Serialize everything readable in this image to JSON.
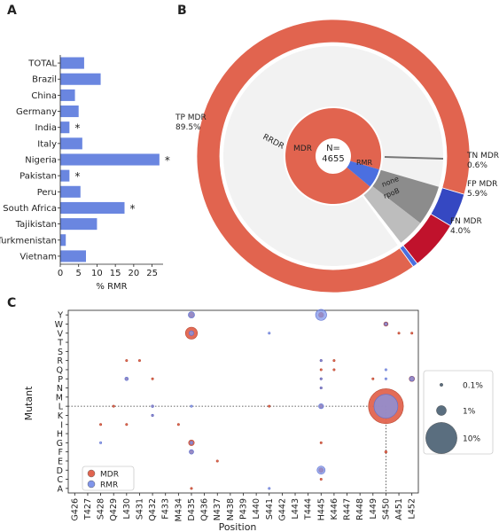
{
  "panel_labels": {
    "a": "A",
    "b": "B",
    "c": "C"
  },
  "chart_data": [
    {
      "panel": "A",
      "type": "bar",
      "orientation": "horizontal",
      "categories": [
        "TOTAL",
        "Brazil",
        "China",
        "Germany",
        "India",
        "Italy",
        "Nigeria",
        "Pakistan",
        "Peru",
        "South Africa",
        "Tajikistan",
        "Turkmenistan",
        "Vietnam"
      ],
      "values": [
        6.5,
        11,
        4,
        5,
        2.5,
        6,
        27,
        2.5,
        5.5,
        17.5,
        10,
        1.5,
        7
      ],
      "markers": [
        "",
        "",
        "",
        "",
        "*",
        "",
        "*",
        "*",
        "",
        "*",
        "",
        "",
        ""
      ],
      "xlabel": "% RMR",
      "xticks": [
        "0",
        "5",
        "10",
        "15",
        "20",
        "25"
      ],
      "xlim": [
        0,
        28
      ],
      "bar_color": "#6a86e0"
    },
    {
      "panel": "B",
      "type": "pie",
      "center_label": "N=\n4655",
      "center_line1": "N=",
      "center_line2": "4655",
      "outer_ring": [
        {
          "label": "TP MDR",
          "pct_label": "89.5%",
          "value": 89.5,
          "color": "#e1644f"
        },
        {
          "label": "TN MDR",
          "pct_label": "0.6%",
          "value": 0.6,
          "color": "#4b6fe0"
        },
        {
          "label": "FP MDR",
          "pct_label": "5.9%",
          "value": 5.9,
          "color": "#c0122c"
        },
        {
          "label": "FN MDR",
          "pct_label": "4.0%",
          "value": 4.0,
          "color": "#3548c2"
        }
      ],
      "middle_ring": [
        {
          "label": "RRDR",
          "value": 89.5,
          "color": "#f2f2f2"
        },
        {
          "label": "none",
          "value": 4.0,
          "color": "#bdbdbd"
        },
        {
          "label": "rpoB",
          "value": 5.9,
          "color": "#8c8c8c"
        }
      ],
      "inner_ring": [
        {
          "label": "MDR",
          "value": 93.5,
          "color": "#e1644f"
        },
        {
          "label": "RMR",
          "value": 6.5,
          "color": "#4b6fe0"
        }
      ]
    },
    {
      "panel": "C",
      "type": "scatter",
      "xlabel": "Position",
      "ylabel": "Mutant",
      "x_categories": [
        "G426",
        "T427",
        "S428",
        "Q429",
        "L430",
        "S431",
        "Q432",
        "F433",
        "M434",
        "D435",
        "Q436",
        "N437",
        "N438",
        "P439",
        "L440",
        "S441",
        "G442",
        "L443",
        "T444",
        "H445",
        "K446",
        "R447",
        "R448",
        "L449",
        "S450",
        "A451",
        "L452"
      ],
      "y_categories": [
        "Y",
        "W",
        "V",
        "T",
        "S",
        "R",
        "Q",
        "P",
        "N",
        "M",
        "L",
        "K",
        "I",
        "H",
        "G",
        "F",
        "E",
        "D",
        "C",
        "A"
      ],
      "series": [
        {
          "name": "MDR",
          "color": "#e1644f",
          "points": [
            {
              "x": "S450",
              "y": "L",
              "v": 30
            },
            {
              "x": "D435",
              "y": "V",
              "v": 3.5
            },
            {
              "x": "D435",
              "y": "G",
              "v": 0.8
            },
            {
              "x": "D435",
              "y": "Y",
              "v": 0.6
            },
            {
              "x": "H445",
              "y": "Y",
              "v": 0.6
            },
            {
              "x": "H445",
              "y": "D",
              "v": 0.5
            },
            {
              "x": "H445",
              "y": "L",
              "v": 0.25
            },
            {
              "x": "S450",
              "y": "W",
              "v": 0.45
            },
            {
              "x": "S450",
              "y": "F",
              "v": 0.15
            },
            {
              "x": "L452",
              "y": "P",
              "v": 0.7
            },
            {
              "x": "L430",
              "y": "R",
              "v": 0.08
            },
            {
              "x": "L430",
              "y": "P",
              "v": 0.12
            },
            {
              "x": "Q432",
              "y": "P",
              "v": 0.08
            },
            {
              "x": "Q432",
              "y": "K",
              "v": 0.06
            },
            {
              "x": "Q432",
              "y": "L",
              "v": 0.05
            },
            {
              "x": "M434",
              "y": "I",
              "v": 0.07
            },
            {
              "x": "D435",
              "y": "F",
              "v": 0.35
            },
            {
              "x": "H445",
              "y": "R",
              "v": 0.1
            },
            {
              "x": "H445",
              "y": "N",
              "v": 0.09
            },
            {
              "x": "H445",
              "y": "Q",
              "v": 0.05
            },
            {
              "x": "H445",
              "y": "P",
              "v": 0.04
            },
            {
              "x": "H445",
              "y": "C",
              "v": 0.04
            },
            {
              "x": "H445",
              "y": "G",
              "v": 0.03
            },
            {
              "x": "S441",
              "y": "L",
              "v": 0.05
            },
            {
              "x": "N437",
              "y": "E",
              "v": 0.04
            },
            {
              "x": "Q429",
              "y": "L",
              "v": 0.04
            },
            {
              "x": "S428",
              "y": "I",
              "v": 0.03
            },
            {
              "x": "L430",
              "y": "I",
              "v": 0.03
            },
            {
              "x": "S431",
              "y": "R",
              "v": 0.03
            },
            {
              "x": "K446",
              "y": "Q",
              "v": 0.03
            },
            {
              "x": "K446",
              "y": "R",
              "v": 0.02
            },
            {
              "x": "D435",
              "y": "A",
              "v": 0.02
            },
            {
              "x": "L449",
              "y": "P",
              "v": 0.02
            },
            {
              "x": "A451",
              "y": "V",
              "v": 0.02
            },
            {
              "x": "L452",
              "y": "V",
              "v": 0.01
            }
          ]
        },
        {
          "name": "RMR",
          "color": "#8095ea",
          "points": [
            {
              "x": "S450",
              "y": "L",
              "v": 14
            },
            {
              "x": "H445",
              "y": "Y",
              "v": 3
            },
            {
              "x": "H445",
              "y": "D",
              "v": 1.6
            },
            {
              "x": "H445",
              "y": "L",
              "v": 0.6
            },
            {
              "x": "D435",
              "y": "Y",
              "v": 1.0
            },
            {
              "x": "D435",
              "y": "V",
              "v": 0.55
            },
            {
              "x": "D435",
              "y": "F",
              "v": 0.5
            },
            {
              "x": "D435",
              "y": "G",
              "v": 0.25
            },
            {
              "x": "L430",
              "y": "P",
              "v": 0.3
            },
            {
              "x": "L452",
              "y": "P",
              "v": 0.55
            },
            {
              "x": "S450",
              "y": "W",
              "v": 0.25
            },
            {
              "x": "Q432",
              "y": "L",
              "v": 0.15
            },
            {
              "x": "Q432",
              "y": "K",
              "v": 0.12
            },
            {
              "x": "S441",
              "y": "V",
              "v": 0.06
            },
            {
              "x": "S441",
              "y": "A",
              "v": 0.07
            },
            {
              "x": "S428",
              "y": "G",
              "v": 0.07
            },
            {
              "x": "H445",
              "y": "R",
              "v": 0.05
            },
            {
              "x": "H445",
              "y": "N",
              "v": 0.05
            },
            {
              "x": "H445",
              "y": "P",
              "v": 0.03
            },
            {
              "x": "S450",
              "y": "P",
              "v": 0.02
            },
            {
              "x": "S450",
              "y": "Q",
              "v": 0.02
            },
            {
              "x": "D435",
              "y": "L",
              "v": 0.02
            }
          ]
        }
      ],
      "highlight": {
        "x": "S450",
        "y": "L"
      },
      "legend_series": [
        "MDR",
        "RMR"
      ],
      "size_legend": [
        {
          "label": "0.1%",
          "v": 0.1
        },
        {
          "label": "1%",
          "v": 1
        },
        {
          "label": "10%",
          "v": 10
        }
      ]
    }
  ]
}
